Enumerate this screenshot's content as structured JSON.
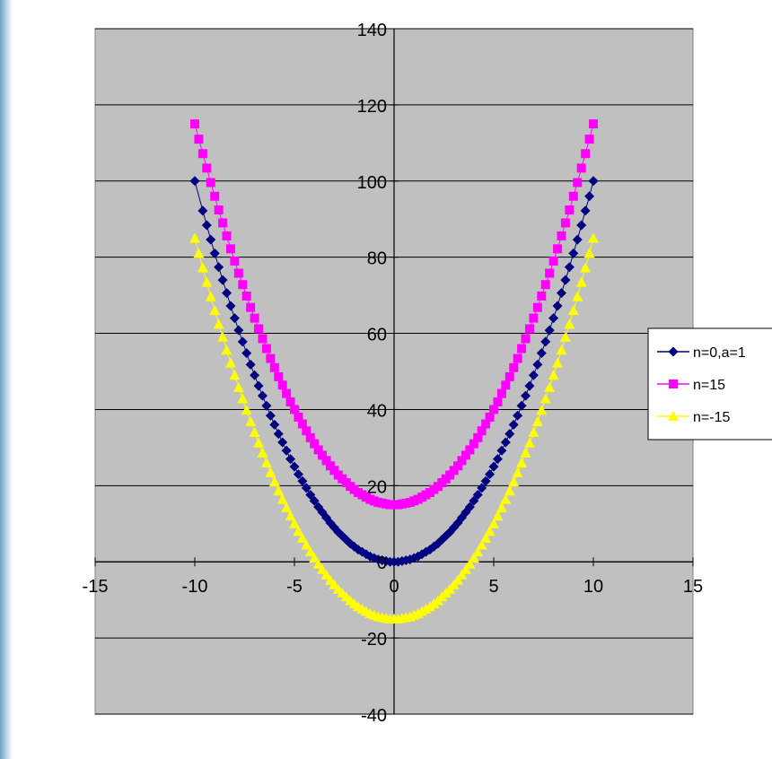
{
  "chart_data": {
    "type": "scatter",
    "title": "",
    "xlabel": "",
    "ylabel": "",
    "xlim": [
      -15,
      15
    ],
    "ylim": [
      -40,
      140
    ],
    "xticks": [
      -15,
      -10,
      -5,
      0,
      5,
      10,
      15
    ],
    "yticks": [
      -40,
      -20,
      0,
      20,
      40,
      60,
      80,
      100,
      120,
      140
    ],
    "x_tick_labels": [
      "-15",
      "-10",
      "-5",
      "0",
      "5",
      "10",
      "15"
    ],
    "y_tick_labels": [
      "-40",
      "-20",
      "0",
      "20",
      "40",
      "60",
      "80",
      "100",
      "120",
      "140"
    ],
    "grid": "horizontal major gridlines",
    "plot_background": "#c0c0c0",
    "legend_position": "right",
    "series": [
      {
        "name": "n=0,a=1",
        "legend_label": "n=0,a=1",
        "marker": "diamond",
        "color": "#000080",
        "x": [
          -10,
          -9.6,
          -9.4,
          -9.2,
          -9,
          -8.8,
          -8.6,
          -8.4,
          -8.2,
          -8,
          -7.8,
          -7.6,
          -7.4,
          -7.2,
          -7,
          -6.8,
          -6.6,
          -6.4,
          -6.2,
          -6,
          -5.8,
          -5.6,
          -5.4,
          -5.2,
          -5,
          -4.8,
          -4.6,
          -4.4,
          -4.2,
          -4,
          -3.8,
          -3.6,
          -3.4,
          -3.2,
          -3,
          -2.8,
          -2.6,
          -2.4,
          -2.2,
          -2,
          -1.8,
          -1.6,
          -1.4,
          -1.2,
          -1,
          -0.8,
          -0.6,
          -0.4,
          -0.2,
          0,
          0.2,
          0.4,
          0.6,
          0.8,
          1,
          1.2,
          1.4,
          1.6,
          1.8,
          2,
          2.2,
          2.4,
          2.6,
          2.8,
          3,
          3.2,
          3.4,
          3.6,
          3.8,
          4,
          4.2,
          4.4,
          4.6,
          4.8,
          5,
          5.2,
          5.4,
          5.6,
          5.8,
          6,
          6.2,
          6.4,
          6.6,
          6.8,
          7,
          7.2,
          7.4,
          7.6,
          7.8,
          8,
          8.2,
          8.4,
          8.6,
          8.8,
          9,
          9.2,
          9.4,
          9.6,
          9.8,
          10
        ],
        "y": [
          100,
          92.2,
          88.4,
          84.6,
          81,
          77.4,
          74,
          70.6,
          67.2,
          64,
          60.8,
          57.8,
          54.8,
          51.8,
          49,
          46.2,
          43.6,
          41,
          38.4,
          36,
          33.6,
          31.4,
          29.2,
          27,
          25,
          23,
          21.2,
          19.4,
          17.6,
          16,
          14.4,
          13,
          11.6,
          10.2,
          9,
          7.8,
          6.8,
          5.8,
          4.8,
          4,
          3.2,
          2.6,
          2,
          1.4,
          1,
          0.6,
          0.4,
          0.2,
          0,
          0,
          0,
          0.2,
          0.4,
          0.6,
          1,
          1.4,
          2,
          2.6,
          3.2,
          4,
          4.8,
          5.8,
          6.8,
          7.8,
          9,
          10.2,
          11.6,
          13,
          14.4,
          16,
          17.6,
          19.4,
          21.2,
          23,
          25,
          27,
          29.2,
          31.4,
          33.6,
          36,
          38.4,
          41,
          43.6,
          46.2,
          49,
          51.8,
          54.8,
          57.8,
          60.8,
          64,
          67.2,
          70.6,
          74,
          77.4,
          81,
          84.6,
          88.4,
          92.2,
          96,
          100
        ]
      },
      {
        "name": "n=15",
        "legend_label": "n=15",
        "marker": "square",
        "color": "#ff00ff",
        "x": [
          -10,
          -9.8,
          -9.6,
          -9.4,
          -9.2,
          -9,
          -8.8,
          -8.6,
          -8.4,
          -8.2,
          -8,
          -7.8,
          -7.6,
          -7.4,
          -7.2,
          -7,
          -6.8,
          -6.6,
          -6.4,
          -6.2,
          -6,
          -5.8,
          -5.6,
          -5.4,
          -5.2,
          -5,
          -4.8,
          -4.6,
          -4.4,
          -4.2,
          -4,
          -3.8,
          -3.6,
          -3.4,
          -3.2,
          -3,
          -2.8,
          -2.6,
          -2.4,
          -2.2,
          -2,
          -1.8,
          -1.6,
          -1.4,
          -1.2,
          -1,
          -0.8,
          -0.6,
          -0.4,
          -0.2,
          0,
          0.2,
          0.4,
          0.6,
          0.8,
          1,
          1.2,
          1.4,
          1.6,
          1.8,
          2,
          2.2,
          2.4,
          2.6,
          2.8,
          3,
          3.2,
          3.4,
          3.6,
          3.8,
          4,
          4.2,
          4.4,
          4.6,
          4.8,
          5,
          5.2,
          5.4,
          5.6,
          5.8,
          6,
          6.2,
          6.4,
          6.6,
          6.8,
          7,
          7.2,
          7.4,
          7.6,
          7.8,
          8,
          8.2,
          8.4,
          8.6,
          8.8,
          9,
          9.2,
          9.4,
          9.6,
          9.8,
          10
        ],
        "y": [
          115,
          111,
          107.2,
          103.4,
          99.6,
          96,
          92.4,
          89,
          85.6,
          82.2,
          79,
          75.8,
          72.8,
          69.8,
          66.8,
          64,
          61.2,
          58.6,
          56,
          53.4,
          51,
          48.6,
          46.4,
          44.2,
          42,
          40,
          38,
          36.2,
          34.4,
          32.6,
          31,
          29.4,
          28,
          26.6,
          25.2,
          24,
          22.8,
          21.8,
          20.8,
          19.8,
          19,
          18.2,
          17.6,
          17,
          16.4,
          16,
          15.6,
          15.4,
          15.2,
          15,
          15,
          15,
          15.2,
          15.4,
          15.6,
          16,
          16.4,
          17,
          17.6,
          18.2,
          19,
          19.8,
          20.8,
          21.8,
          22.8,
          24,
          25.2,
          26.6,
          28,
          29.4,
          31,
          32.6,
          34.4,
          36.2,
          38,
          40,
          42,
          44.2,
          46.4,
          48.6,
          51,
          53.4,
          56,
          58.6,
          61.2,
          64,
          66.8,
          69.8,
          72.8,
          75.8,
          79,
          82.2,
          85.6,
          89,
          92.4,
          96,
          99.6,
          103.4,
          107.2,
          111,
          115
        ]
      },
      {
        "name": "n=-15",
        "legend_label": "n=-15",
        "marker": "triangle",
        "color": "#ffff00",
        "x": [
          -10,
          -9.8,
          -9.6,
          -9.4,
          -9.2,
          -9,
          -8.8,
          -8.6,
          -8.4,
          -8.2,
          -8,
          -7.8,
          -7.6,
          -7.4,
          -7.2,
          -7,
          -6.8,
          -6.6,
          -6.4,
          -6.2,
          -6,
          -5.8,
          -5.6,
          -5.4,
          -5.2,
          -5,
          -4.8,
          -4.6,
          -4.4,
          -4.2,
          -4,
          -3.8,
          -3.6,
          -3.4,
          -3.2,
          -3,
          -2.8,
          -2.6,
          -2.4,
          -2.2,
          -2,
          -1.8,
          -1.6,
          -1.4,
          -1.2,
          -1,
          -0.8,
          -0.6,
          -0.4,
          -0.2,
          0,
          0.2,
          0.4,
          0.6,
          0.8,
          1,
          1.2,
          1.4,
          1.6,
          1.8,
          2,
          2.2,
          2.4,
          2.6,
          2.8,
          3,
          3.2,
          3.4,
          3.6,
          3.8,
          4,
          4.2,
          4.4,
          4.6,
          4.8,
          5,
          5.2,
          5.4,
          5.6,
          5.8,
          6,
          6.2,
          6.4,
          6.6,
          6.8,
          7,
          7.2,
          7.4,
          7.6,
          7.8,
          8,
          8.2,
          8.4,
          8.6,
          8.8,
          9,
          9.2,
          9.4,
          9.6,
          9.8,
          10
        ],
        "y": [
          85,
          81,
          77.2,
          73.4,
          69.6,
          66,
          62.4,
          59,
          55.6,
          52.2,
          49,
          45.8,
          42.8,
          39.8,
          36.8,
          34,
          31.2,
          28.6,
          26,
          23.4,
          21,
          18.6,
          16.4,
          14.2,
          12,
          10,
          8,
          6.2,
          4.4,
          2.6,
          1,
          -0.6,
          -2,
          -3.4,
          -4.8,
          -6,
          -7.2,
          -8.2,
          -9.2,
          -10.2,
          -11,
          -11.8,
          -12.4,
          -13,
          -13.6,
          -14,
          -14.4,
          -14.6,
          -14.8,
          -15,
          -15,
          -15,
          -14.8,
          -14.6,
          -14.4,
          -14,
          -13.6,
          -13,
          -12.4,
          -11.8,
          -11,
          -10.2,
          -9.2,
          -8.2,
          -7.2,
          -6,
          -4.8,
          -3.4,
          -2,
          -0.6,
          1,
          2.6,
          4.4,
          6.2,
          8,
          10,
          12,
          14.2,
          16.4,
          18.6,
          21,
          23.4,
          26,
          28.6,
          31.2,
          34,
          36.8,
          39.8,
          42.8,
          45.8,
          49,
          52.2,
          55.6,
          59,
          62.4,
          66,
          69.6,
          73.4,
          77.2,
          81,
          85
        ]
      }
    ]
  }
}
